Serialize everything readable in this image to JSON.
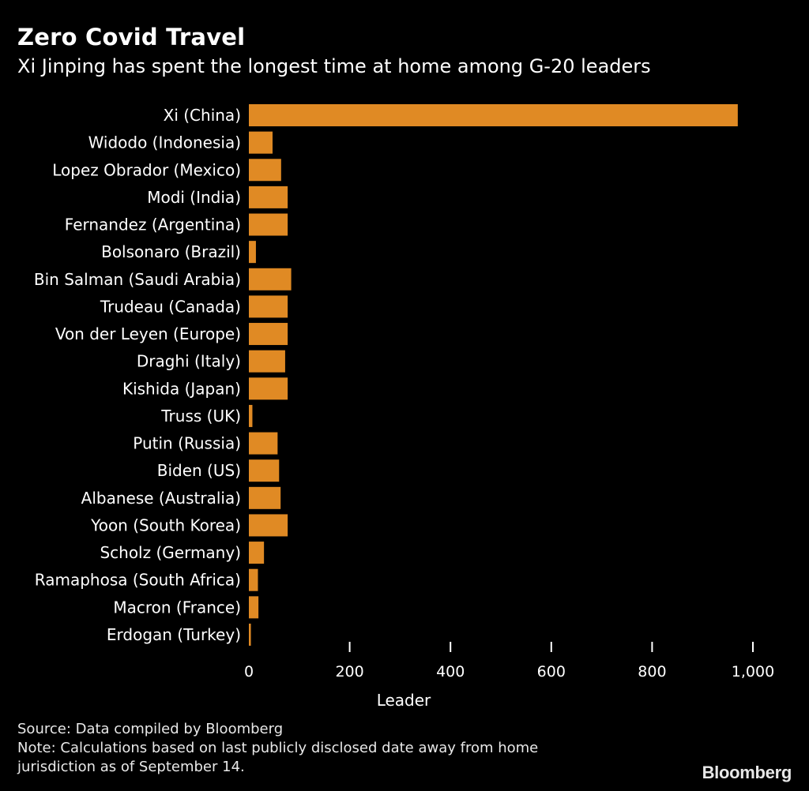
{
  "header": {
    "title": "Zero Covid Travel",
    "subtitle": "Xi Jinping has spent the longest time at home among G-20 leaders"
  },
  "footer": {
    "source": "Source: Data compiled by Bloomberg",
    "note_line1": "Note: Calculations based on last publicly disclosed date away from home",
    "note_line2": "jurisdiction as of September 14.",
    "brand": "Bloomberg"
  },
  "colors": {
    "bar": "#e08a24",
    "background": "#000000",
    "text": "#ffffff"
  },
  "chart_data": {
    "type": "bar",
    "orientation": "horizontal",
    "title": "Zero Covid Travel",
    "subtitle": "Xi Jinping has spent the longest time at home among G-20 leaders",
    "xlabel": "Leader",
    "ylabel": "",
    "xlim": [
      0,
      1000
    ],
    "xticks": [
      0,
      200,
      400,
      600,
      800,
      1000
    ],
    "xtick_labels": [
      "0",
      "200",
      "400",
      "600",
      "800",
      "1,000"
    ],
    "grid": false,
    "legend": "none",
    "categories": [
      "Xi (China)",
      "Widodo (Indonesia)",
      "Lopez Obrador (Mexico)",
      "Modi (India)",
      "Fernandez (Argentina)",
      "Bolsonaro (Brazil)",
      "Bin Salman (Saudi Arabia)",
      "Trudeau (Canada)",
      "Von der Leyen (Europe)",
      "Draghi (Italy)",
      "Kishida (Japan)",
      "Truss (UK)",
      "Putin (Russia)",
      "Biden (US)",
      "Albanese (Australia)",
      "Yoon (South Korea)",
      "Scholz (Germany)",
      "Ramaphosa (South Africa)",
      "Macron (France)",
      "Erdogan (Turkey)"
    ],
    "values": [
      970,
      47,
      64,
      77,
      77,
      14,
      84,
      77,
      77,
      72,
      77,
      7,
      57,
      60,
      63,
      77,
      30,
      18,
      19,
      4
    ]
  }
}
